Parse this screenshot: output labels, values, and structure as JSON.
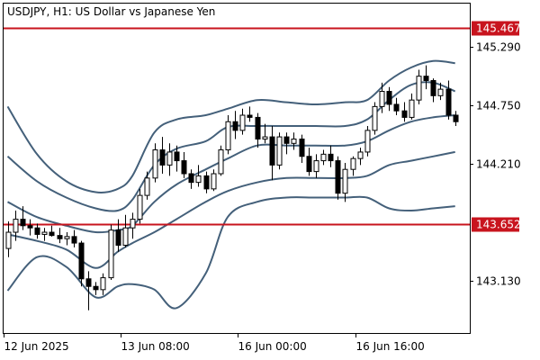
{
  "chart_data": {
    "type": "candlestick",
    "title": "USDJPY, H1:  US Dollar vs Japanese Yen",
    "symbol": "USDJPY",
    "timeframe": "H1",
    "description": "US Dollar vs Japanese Yen",
    "y_range": [
      142.65,
      145.69
    ],
    "y_ticks": [
      "145.290",
      "144.750",
      "144.210",
      "143.130"
    ],
    "x_ticks": [
      "12 Jun 2025",
      "13 Jun 08:00",
      "16 Jun 00:00",
      "16 Jun 16:00"
    ],
    "x_tick_index": [
      0,
      16,
      32,
      48
    ],
    "levels": [
      {
        "label": "145.467",
        "value": 145.467
      },
      {
        "label": "143.652",
        "value": 143.652
      }
    ],
    "candles": [
      [
        143.43,
        143.68,
        143.35,
        143.58
      ],
      [
        143.58,
        143.78,
        143.5,
        143.7
      ],
      [
        143.7,
        143.82,
        143.6,
        143.64
      ],
      [
        143.64,
        143.7,
        143.55,
        143.62
      ],
      [
        143.62,
        143.66,
        143.52,
        143.56
      ],
      [
        143.56,
        143.62,
        143.5,
        143.58
      ],
      [
        143.58,
        143.64,
        143.54,
        143.55
      ],
      [
        143.55,
        143.62,
        143.48,
        143.52
      ],
      [
        143.52,
        143.58,
        143.46,
        143.54
      ],
      [
        143.54,
        143.6,
        143.44,
        143.48
      ],
      [
        143.48,
        143.5,
        143.08,
        143.15
      ],
      [
        143.15,
        143.22,
        142.86,
        143.08
      ],
      [
        143.08,
        143.12,
        143.0,
        143.05
      ],
      [
        143.05,
        143.2,
        143.0,
        143.16
      ],
      [
        143.16,
        143.65,
        143.14,
        143.6
      ],
      [
        143.6,
        143.7,
        143.4,
        143.46
      ],
      [
        143.46,
        143.74,
        143.44,
        143.62
      ],
      [
        143.62,
        143.76,
        143.52,
        143.7
      ],
      [
        143.7,
        143.98,
        143.66,
        143.92
      ],
      [
        143.92,
        144.14,
        143.88,
        144.08
      ],
      [
        144.08,
        144.4,
        144.04,
        144.34
      ],
      [
        144.34,
        144.46,
        144.12,
        144.2
      ],
      [
        144.2,
        144.4,
        144.1,
        144.32
      ],
      [
        144.32,
        144.38,
        144.14,
        144.24
      ],
      [
        144.24,
        144.32,
        144.08,
        144.12
      ],
      [
        144.12,
        144.16,
        143.98,
        144.04
      ],
      [
        144.04,
        144.2,
        144.0,
        144.1
      ],
      [
        144.1,
        144.14,
        143.94,
        143.98
      ],
      [
        143.98,
        144.16,
        143.96,
        144.12
      ],
      [
        144.12,
        144.38,
        144.1,
        144.34
      ],
      [
        144.34,
        144.66,
        144.3,
        144.6
      ],
      [
        144.6,
        144.7,
        144.44,
        144.52
      ],
      [
        144.52,
        144.72,
        144.48,
        144.66
      ],
      [
        144.66,
        144.74,
        144.6,
        144.64
      ],
      [
        144.64,
        144.68,
        144.36,
        144.44
      ],
      [
        144.44,
        144.58,
        144.4,
        144.46
      ],
      [
        144.46,
        144.56,
        144.06,
        144.2
      ],
      [
        144.2,
        144.5,
        144.16,
        144.46
      ],
      [
        144.46,
        144.5,
        144.3,
        144.4
      ],
      [
        144.4,
        144.5,
        144.34,
        144.44
      ],
      [
        144.44,
        144.48,
        144.22,
        144.28
      ],
      [
        144.28,
        144.36,
        144.1,
        144.14
      ],
      [
        144.14,
        144.3,
        144.08,
        144.24
      ],
      [
        144.24,
        144.34,
        144.2,
        144.3
      ],
      [
        144.3,
        144.38,
        144.18,
        144.24
      ],
      [
        144.24,
        144.28,
        143.88,
        143.94
      ],
      [
        143.94,
        144.22,
        143.86,
        144.16
      ],
      [
        144.16,
        144.28,
        144.1,
        144.26
      ],
      [
        144.26,
        144.36,
        144.2,
        144.32
      ],
      [
        144.32,
        144.56,
        144.28,
        144.52
      ],
      [
        144.52,
        144.78,
        144.48,
        144.74
      ],
      [
        144.74,
        144.96,
        144.68,
        144.88
      ],
      [
        144.88,
        144.92,
        144.7,
        144.76
      ],
      [
        144.76,
        144.82,
        144.66,
        144.7
      ],
      [
        144.7,
        144.78,
        144.6,
        144.64
      ],
      [
        144.64,
        144.86,
        144.62,
        144.8
      ],
      [
        144.8,
        145.08,
        144.76,
        145.02
      ],
      [
        145.02,
        145.12,
        144.9,
        144.98
      ],
      [
        144.98,
        145.0,
        144.78,
        144.84
      ],
      [
        144.84,
        144.96,
        144.8,
        144.9
      ],
      [
        144.9,
        144.98,
        144.62,
        144.66
      ],
      [
        144.66,
        144.7,
        144.56,
        144.6
      ]
    ],
    "bands": {
      "color": "#44607a",
      "points": [
        {
          "i": 0,
          "o1": 144.74,
          "i1": 144.28,
          "m": 143.86,
          "i2": 143.56,
          "o2": 143.04
        },
        {
          "i": 4,
          "o1": 144.3,
          "i1": 144.05,
          "m": 143.72,
          "i2": 143.5,
          "o2": 143.35
        },
        {
          "i": 8,
          "o1": 144.05,
          "i1": 143.9,
          "m": 143.64,
          "i2": 143.42,
          "o2": 143.26
        },
        {
          "i": 12,
          "o1": 143.95,
          "i1": 143.8,
          "m": 143.58,
          "i2": 143.25,
          "o2": 142.98
        },
        {
          "i": 15,
          "o1": 143.98,
          "i1": 143.78,
          "m": 143.6,
          "i2": 143.4,
          "o2": 143.08
        },
        {
          "i": 17,
          "o1": 144.1,
          "i1": 143.88,
          "m": 143.64,
          "i2": 143.48,
          "o2": 143.1
        },
        {
          "i": 20,
          "o1": 144.5,
          "i1": 144.2,
          "m": 143.86,
          "i2": 143.58,
          "o2": 143.05
        },
        {
          "i": 23,
          "o1": 144.62,
          "i1": 144.35,
          "m": 144.02,
          "i2": 143.7,
          "o2": 142.88
        },
        {
          "i": 27,
          "o1": 144.66,
          "i1": 144.42,
          "m": 144.16,
          "i2": 143.86,
          "o2": 143.2
        },
        {
          "i": 30,
          "o1": 144.72,
          "i1": 144.55,
          "m": 144.26,
          "i2": 143.96,
          "o2": 143.72
        },
        {
          "i": 34,
          "o1": 144.8,
          "i1": 144.56,
          "m": 144.38,
          "i2": 144.04,
          "o2": 143.86
        },
        {
          "i": 38,
          "o1": 144.78,
          "i1": 144.56,
          "m": 144.38,
          "i2": 144.08,
          "o2": 143.9
        },
        {
          "i": 42,
          "o1": 144.76,
          "i1": 144.56,
          "m": 144.38,
          "i2": 144.08,
          "o2": 143.9
        },
        {
          "i": 46,
          "o1": 144.78,
          "i1": 144.56,
          "m": 144.38,
          "i2": 144.08,
          "o2": 143.9
        },
        {
          "i": 49,
          "o1": 144.8,
          "i1": 144.62,
          "m": 144.42,
          "i2": 144.1,
          "o2": 143.9
        },
        {
          "i": 52,
          "o1": 144.98,
          "i1": 144.8,
          "m": 144.52,
          "i2": 144.2,
          "o2": 143.8
        },
        {
          "i": 55,
          "o1": 145.1,
          "i1": 144.94,
          "m": 144.6,
          "i2": 144.24,
          "o2": 143.78
        },
        {
          "i": 58,
          "o1": 145.16,
          "i1": 144.96,
          "m": 144.64,
          "i2": 144.28,
          "o2": 143.8
        },
        {
          "i": 61,
          "o1": 145.14,
          "i1": 144.88,
          "m": 144.66,
          "i2": 144.32,
          "o2": 143.82
        }
      ]
    },
    "colors": {
      "background": "#ffffff",
      "frame": "#000000",
      "level_line": "#c8141e",
      "candle": "#000000",
      "axis_text": "#000000",
      "label_text": "#ffffff"
    },
    "grid": false
  }
}
